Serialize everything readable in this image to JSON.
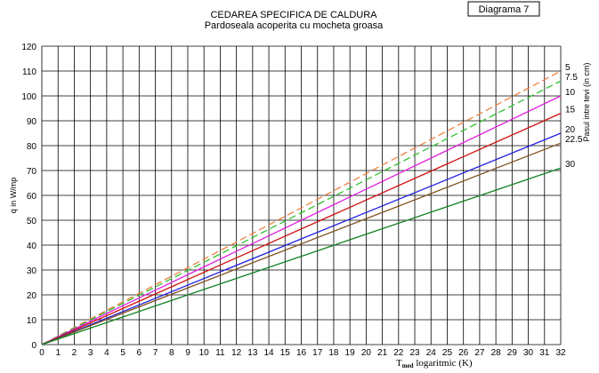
{
  "chart_data": {
    "type": "line",
    "title": "CEDAREA SPECIFICA DE CALDURA",
    "subtitle": "Pardoseala acoperita cu mocheta groasa",
    "badge": "Diagrama 7",
    "y_label": "q in W/mp",
    "x_label": {
      "main": "T",
      "sub": "med",
      "rest": " logaritmic (K)"
    },
    "legend_title": "Pasul intre tevi (in cm)",
    "x": [
      0,
      32
    ],
    "series": [
      {
        "name": "5",
        "color": "#f08040",
        "dash": true,
        "values": [
          0,
          110
        ]
      },
      {
        "name": "7.5",
        "color": "#30c030",
        "dash": true,
        "values": [
          0,
          106
        ]
      },
      {
        "name": "10",
        "color": "#e020e0",
        "dash": false,
        "values": [
          0,
          100
        ]
      },
      {
        "name": "15",
        "color": "#d01010",
        "dash": false,
        "values": [
          0,
          93
        ]
      },
      {
        "name": "20",
        "color": "#2020e0",
        "dash": false,
        "values": [
          0,
          85
        ]
      },
      {
        "name": "22.5",
        "color": "#805020",
        "dash": false,
        "values": [
          0,
          81
        ]
      },
      {
        "name": "30",
        "color": "#108020",
        "dash": false,
        "values": [
          0,
          71
        ]
      }
    ],
    "xlim": [
      0,
      32
    ],
    "xticks": [
      0,
      1,
      2,
      3,
      4,
      5,
      6,
      7,
      8,
      9,
      10,
      11,
      12,
      13,
      14,
      15,
      16,
      17,
      18,
      19,
      20,
      21,
      22,
      23,
      24,
      25,
      26,
      27,
      28,
      29,
      30,
      31,
      32
    ],
    "ylim": [
      0,
      120
    ],
    "yticks": [
      0,
      10,
      20,
      30,
      40,
      50,
      60,
      70,
      80,
      90,
      100,
      110,
      120
    ],
    "grid": true
  }
}
